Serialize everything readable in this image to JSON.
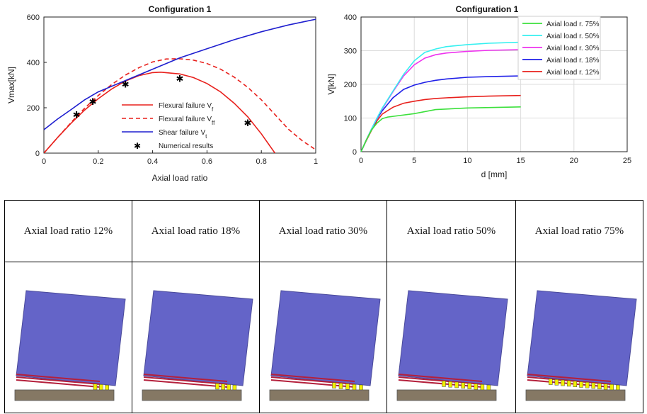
{
  "chart_data": [
    {
      "type": "line",
      "title": "Configuration 1",
      "xlabel": "Axial load ratio",
      "ylabel": "Vmax[kN]",
      "xlim": [
        0,
        1
      ],
      "ylim": [
        0,
        600
      ],
      "xticks": [
        "0",
        "0.2",
        "0.4",
        "0.6",
        "0.8",
        "1"
      ],
      "yticks": [
        "0",
        "200",
        "400",
        "600"
      ],
      "legend_position": "bottom-center",
      "series": [
        {
          "name": "Flexural failure V",
          "sub": "f",
          "style": "solid",
          "color": "#e8201c",
          "x": [
            0,
            0.05,
            0.1,
            0.15,
            0.2,
            0.25,
            0.3,
            0.35,
            0.4,
            0.43,
            0.5,
            0.55,
            0.6,
            0.65,
            0.7,
            0.75,
            0.8,
            0.85
          ],
          "y": [
            0,
            68,
            132,
            190,
            240,
            283,
            318,
            342,
            355,
            357,
            349,
            333,
            307,
            270,
            220,
            160,
            85,
            0
          ]
        },
        {
          "name": "Flexural failure V",
          "sub": "ff",
          "style": "dashed",
          "color": "#e8201c",
          "x": [
            0,
            0.05,
            0.1,
            0.15,
            0.2,
            0.25,
            0.3,
            0.35,
            0.4,
            0.45,
            0.5,
            0.55,
            0.6,
            0.65,
            0.7,
            0.75,
            0.8,
            0.85,
            0.9,
            0.95,
            1.0
          ],
          "y": [
            0,
            68,
            135,
            198,
            254,
            303,
            344,
            377,
            402,
            415,
            416,
            410,
            395,
            370,
            335,
            290,
            235,
            170,
            105,
            55,
            15
          ]
        },
        {
          "name": "Shear failure V",
          "sub": "t",
          "style": "solid",
          "color": "#1f1fcf",
          "x": [
            0,
            0.05,
            0.1,
            0.15,
            0.2,
            0.3,
            0.4,
            0.5,
            0.6,
            0.7,
            0.8,
            0.9,
            1.0
          ],
          "y": [
            103,
            150,
            192,
            235,
            270,
            320,
            370,
            420,
            460,
            500,
            535,
            565,
            590
          ]
        },
        {
          "name": "Numerical results",
          "style": "marker",
          "color": "#000000",
          "x": [
            0.12,
            0.18,
            0.3,
            0.5,
            0.75
          ],
          "y": [
            170,
            228,
            305,
            330,
            135
          ]
        }
      ]
    },
    {
      "type": "line",
      "title": "Configuration 1",
      "xlabel": "d [mm]",
      "ylabel": "V[kN]",
      "xlim": [
        0,
        25
      ],
      "ylim": [
        0,
        400
      ],
      "xticks": [
        "0",
        "5",
        "10",
        "15",
        "20",
        "25"
      ],
      "yticks": [
        "0",
        "100",
        "200",
        "300",
        "400"
      ],
      "grid": true,
      "legend_position": "top-right",
      "series": [
        {
          "name": "Axial load r. 75%",
          "color": "#3ce03c",
          "x": [
            0,
            0.5,
            1,
            1.5,
            2,
            2.5,
            5,
            7,
            10,
            15
          ],
          "y": [
            0,
            35,
            65,
            85,
            98,
            103,
            113,
            125,
            130,
            133
          ]
        },
        {
          "name": "Axial load r. 50%",
          "color": "#35f0f0",
          "x": [
            0,
            0.5,
            1,
            1.5,
            2,
            3,
            4,
            5,
            6,
            7,
            8,
            10,
            12,
            15
          ],
          "y": [
            0,
            35,
            68,
            100,
            130,
            180,
            230,
            270,
            295,
            305,
            312,
            318,
            322,
            325
          ]
        },
        {
          "name": "Axial load r. 30%",
          "color": "#ee33ee",
          "x": [
            0,
            0.5,
            1,
            1.5,
            2,
            3,
            4,
            5,
            6,
            7,
            8,
            10,
            12,
            15
          ],
          "y": [
            0,
            35,
            68,
            100,
            128,
            178,
            225,
            258,
            278,
            288,
            293,
            298,
            301,
            303
          ]
        },
        {
          "name": "Axial load r. 18%",
          "color": "#1f1fe8",
          "x": [
            0,
            0.5,
            1,
            1.5,
            2,
            3,
            4,
            5,
            6,
            7,
            8,
            10,
            12,
            15
          ],
          "y": [
            0,
            35,
            68,
            98,
            122,
            160,
            185,
            198,
            206,
            212,
            216,
            221,
            223,
            225
          ]
        },
        {
          "name": "Axial load r. 12%",
          "color": "#e8201c",
          "x": [
            0,
            0.5,
            1,
            1.5,
            2,
            3,
            4,
            5,
            6,
            7,
            8,
            10,
            12,
            15
          ],
          "y": [
            0,
            33,
            64,
            92,
            112,
            132,
            144,
            150,
            155,
            158,
            160,
            163,
            165,
            167
          ]
        }
      ]
    }
  ],
  "panels": [
    {
      "label": "Axial load ratio 12%",
      "tilt": 0.12
    },
    {
      "label": "Axial load ratio 18%",
      "tilt": 0.18
    },
    {
      "label": "Axial load ratio 30%",
      "tilt": 0.3
    },
    {
      "label": "Axial load ratio 50%",
      "tilt": 0.5
    },
    {
      "label": "Axial load ratio 75%",
      "tilt": 0.75
    }
  ],
  "colors": {
    "wall": "#6464c8",
    "rebar": "#b4203c",
    "crack": "#f2f000",
    "base": "#857864"
  }
}
